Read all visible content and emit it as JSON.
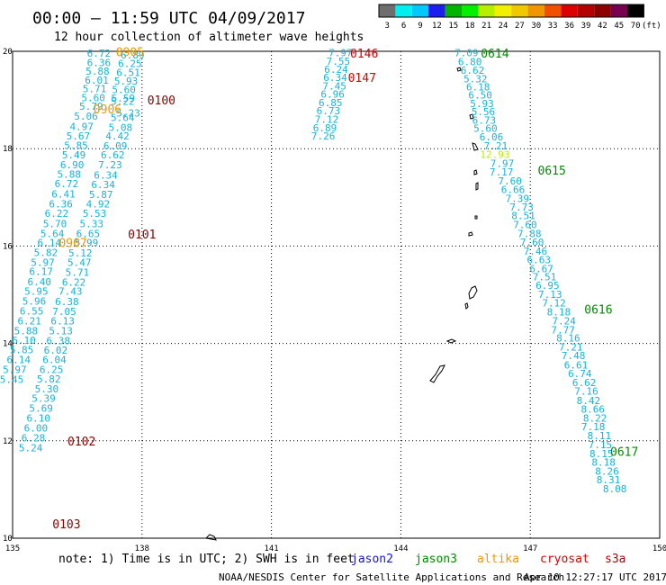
{
  "header": {
    "title": "00:00 – 11:59 UTC 04/09/2017",
    "subtitle": "12 hour collection of altimeter wave heights"
  },
  "scale": {
    "unit_label": "(ft)",
    "ticks": [
      "3",
      "6",
      "9",
      "12",
      "15",
      "18",
      "21",
      "24",
      "27",
      "30",
      "33",
      "36",
      "39",
      "42",
      "45",
      "70"
    ],
    "colors": [
      "#6e6e6e",
      "#00f0f0",
      "#00c8f8",
      "#1e1ef0",
      "#00b400",
      "#00f000",
      "#b4f000",
      "#f0f000",
      "#f0c800",
      "#f09600",
      "#f05000",
      "#dc0000",
      "#b40000",
      "#8c0000",
      "#780050",
      "#000000"
    ]
  },
  "footer": {
    "note": "note: 1) Time is in UTC; 2) SWH is in feet",
    "credit": "NOAA/NESDIS Center for Satellite Applications and Research",
    "timestamp": "Apr 10 12:27:17 UTC 2017",
    "satellites": [
      {
        "name": "jason2",
        "color": "#1414dc"
      },
      {
        "name": "jason3",
        "color": "#008c00"
      },
      {
        "name": "altika",
        "color": "#f09600"
      },
      {
        "name": "cryosat",
        "color": "#dc0000"
      },
      {
        "name": "s3a",
        "color": "#b40000"
      }
    ]
  },
  "chart_data": {
    "type": "scatter",
    "xlim": [
      135,
      150
    ],
    "ylim": [
      10,
      20
    ],
    "x_ticks": [
      135,
      138,
      141,
      144,
      147,
      150
    ],
    "y_ticks": [
      10,
      12,
      14,
      16,
      18,
      20
    ],
    "grid": true,
    "value_color": "#14b4dc",
    "tracks": [
      {
        "id": "A",
        "points": [
          [
            137.0,
            19.96,
            "6.72"
          ],
          [
            137.0,
            19.77,
            "6.36"
          ],
          [
            136.97,
            19.59,
            "5.88"
          ],
          [
            136.95,
            19.41,
            "6.01"
          ],
          [
            136.9,
            19.23,
            "5.71"
          ],
          [
            136.87,
            19.05,
            "5.60"
          ],
          [
            136.82,
            18.87,
            "5.79"
          ],
          [
            136.7,
            18.67,
            "5.06"
          ],
          [
            136.6,
            18.46,
            "4.97"
          ],
          [
            136.52,
            18.26,
            "5.67"
          ],
          [
            136.47,
            18.07,
            "5.85"
          ],
          [
            136.42,
            17.87,
            "5.49"
          ],
          [
            136.38,
            17.67,
            "6.90"
          ],
          [
            136.31,
            17.48,
            "5.88"
          ],
          [
            136.25,
            17.28,
            "6.72"
          ],
          [
            136.18,
            17.07,
            "6.41"
          ],
          [
            136.12,
            16.87,
            "6.36"
          ],
          [
            136.02,
            16.67,
            "6.22"
          ],
          [
            135.98,
            16.46,
            "5.70"
          ],
          [
            135.92,
            16.26,
            "5.64"
          ],
          [
            135.85,
            16.07,
            "6.14"
          ],
          [
            135.77,
            15.87,
            "5.82"
          ],
          [
            135.7,
            15.67,
            "5.97"
          ],
          [
            135.66,
            15.48,
            "6.17"
          ],
          [
            135.62,
            15.27,
            "6.40"
          ],
          [
            135.55,
            15.07,
            "5.95"
          ],
          [
            135.5,
            14.87,
            "5.96"
          ],
          [
            135.44,
            14.67,
            "6.55"
          ],
          [
            135.39,
            14.46,
            "6.21"
          ],
          [
            135.31,
            14.26,
            "5.88"
          ],
          [
            135.26,
            14.07,
            "6.10"
          ],
          [
            135.21,
            13.87,
            "5.85"
          ],
          [
            135.14,
            13.67,
            "6.14"
          ],
          [
            135.05,
            13.47,
            "5.97"
          ],
          [
            134.98,
            13.26,
            "5.45"
          ]
        ]
      },
      {
        "id": "B",
        "points": [
          [
            137.78,
            19.93,
            "6.89"
          ],
          [
            137.72,
            19.75,
            "6.25"
          ],
          [
            137.68,
            19.57,
            "6.51"
          ],
          [
            137.63,
            19.39,
            "5.93"
          ],
          [
            137.58,
            19.21,
            "5.60"
          ],
          [
            137.56,
            19.04,
            "5.59"
          ],
          [
            137.55,
            18.97,
            "5.22"
          ],
          [
            137.68,
            18.73,
            "5.23"
          ],
          [
            137.55,
            18.64,
            "5.64"
          ],
          [
            137.5,
            18.44,
            "5.08"
          ],
          [
            137.43,
            18.26,
            "4.42"
          ],
          [
            137.38,
            18.06,
            "6.09"
          ],
          [
            137.32,
            17.87,
            "6.62"
          ],
          [
            137.26,
            17.67,
            "7.23"
          ],
          [
            137.16,
            17.46,
            "6.34"
          ],
          [
            137.1,
            17.26,
            "6.34"
          ],
          [
            137.05,
            17.06,
            "5.87"
          ],
          [
            136.98,
            16.87,
            "4.92"
          ],
          [
            136.9,
            16.67,
            "5.53"
          ],
          [
            136.83,
            16.46,
            "5.33"
          ],
          [
            136.75,
            16.26,
            "6.65"
          ],
          [
            136.71,
            16.07,
            "5.99"
          ],
          [
            136.57,
            15.86,
            "5.12"
          ],
          [
            136.55,
            15.67,
            "5.47"
          ],
          [
            136.5,
            15.46,
            "5.71"
          ],
          [
            136.42,
            15.26,
            "6.22"
          ],
          [
            136.34,
            15.07,
            "7.43"
          ],
          [
            136.26,
            14.86,
            "6.38"
          ],
          [
            136.2,
            14.66,
            "7.05"
          ],
          [
            136.16,
            14.46,
            "6.13"
          ],
          [
            136.12,
            14.26,
            "5.13"
          ],
          [
            136.06,
            14.06,
            "6.38"
          ],
          [
            136.0,
            13.86,
            "6.02"
          ],
          [
            135.97,
            13.67,
            "6.04"
          ],
          [
            135.9,
            13.47,
            "6.25"
          ],
          [
            135.84,
            13.27,
            "5.82"
          ],
          [
            135.79,
            13.07,
            "5.30"
          ],
          [
            135.72,
            12.87,
            "5.39"
          ],
          [
            135.66,
            12.67,
            "5.69"
          ],
          [
            135.6,
            12.47,
            "6.10"
          ],
          [
            135.54,
            12.26,
            "6.00"
          ],
          [
            135.48,
            12.06,
            "6.28"
          ],
          [
            135.42,
            11.86,
            "5.24"
          ]
        ]
      },
      {
        "id": "C",
        "points": [
          [
            142.6,
            19.97,
            "7.97"
          ],
          [
            142.55,
            19.8,
            "7.55"
          ],
          [
            142.5,
            19.63,
            "6.24"
          ],
          [
            142.48,
            19.46,
            "6.34"
          ],
          [
            142.46,
            19.29,
            "7.45"
          ],
          [
            142.42,
            19.12,
            "6.96"
          ],
          [
            142.37,
            18.95,
            "6.85"
          ],
          [
            142.32,
            18.78,
            "6.73"
          ],
          [
            142.28,
            18.6,
            "7.12"
          ],
          [
            142.24,
            18.43,
            "6.89"
          ],
          [
            142.2,
            18.26,
            "7.26"
          ]
        ]
      },
      {
        "id": "D",
        "points": [
          [
            145.52,
            19.97,
            "7.09"
          ],
          [
            145.6,
            19.79,
            "6.80"
          ],
          [
            145.66,
            19.61,
            "6.62"
          ],
          [
            145.73,
            19.44,
            "5.32"
          ],
          [
            145.79,
            19.27,
            "6.18"
          ],
          [
            145.84,
            19.1,
            "6.50"
          ],
          [
            145.88,
            18.93,
            "5.93"
          ],
          [
            145.91,
            18.76,
            "5.56"
          ],
          [
            145.93,
            18.59,
            "6.73"
          ],
          [
            145.96,
            18.42,
            "5.60"
          ],
          [
            146.1,
            18.24,
            "6.06"
          ],
          [
            146.2,
            18.06,
            "7.21"
          ],
          [
            146.18,
            17.88,
            "12.93"
          ],
          [
            146.35,
            17.7,
            "7.97"
          ],
          [
            146.33,
            17.52,
            "7.17"
          ],
          [
            146.53,
            17.34,
            "7.60"
          ],
          [
            146.6,
            17.16,
            "6.66"
          ],
          [
            146.7,
            16.98,
            "7.39"
          ],
          [
            146.8,
            16.8,
            "7.73"
          ],
          [
            146.84,
            16.63,
            "8.51"
          ],
          [
            146.88,
            16.44,
            "7.60"
          ],
          [
            146.98,
            16.26,
            "7.88"
          ],
          [
            147.04,
            16.08,
            "7.60"
          ],
          [
            147.12,
            15.9,
            "7.46"
          ],
          [
            147.2,
            15.72,
            "6.63"
          ],
          [
            147.26,
            15.54,
            "6.67"
          ],
          [
            147.33,
            15.37,
            "7.51"
          ],
          [
            147.4,
            15.19,
            "6.95"
          ],
          [
            147.46,
            15.01,
            "7.13"
          ],
          [
            147.55,
            14.83,
            "7.12"
          ],
          [
            147.66,
            14.65,
            "8.18"
          ],
          [
            147.78,
            14.46,
            "7.24"
          ],
          [
            147.76,
            14.28,
            "7.77"
          ],
          [
            147.88,
            14.11,
            "8.16"
          ],
          [
            147.94,
            13.93,
            "7.21"
          ],
          [
            148.0,
            13.75,
            "7.48"
          ],
          [
            148.06,
            13.56,
            "6.61"
          ],
          [
            148.15,
            13.38,
            "6.74"
          ],
          [
            148.25,
            13.2,
            "6.62"
          ],
          [
            148.3,
            13.02,
            "7.16"
          ],
          [
            148.35,
            12.83,
            "8.42"
          ],
          [
            148.45,
            12.65,
            "8.66"
          ],
          [
            148.5,
            12.47,
            "8.22"
          ],
          [
            148.46,
            12.29,
            "7.18"
          ],
          [
            148.6,
            12.11,
            "8.11"
          ],
          [
            148.62,
            11.92,
            "7.15"
          ],
          [
            148.65,
            11.74,
            "8.15"
          ],
          [
            148.7,
            11.56,
            "8.18"
          ],
          [
            148.78,
            11.38,
            "8.26"
          ],
          [
            148.81,
            11.2,
            "8.31"
          ],
          [
            148.96,
            11.02,
            "8.08"
          ]
        ]
      }
    ],
    "pass_labels": [
      {
        "text": "0905",
        "x": 137.72,
        "y": 19.99,
        "color": "#f09600"
      },
      {
        "text": "0100",
        "x": 138.45,
        "y": 19.0,
        "color": "#8c0000"
      },
      {
        "text": "0906",
        "x": 137.2,
        "y": 18.82,
        "color": "#f09600"
      },
      {
        "text": "0101",
        "x": 138.0,
        "y": 16.25,
        "color": "#8c0000"
      },
      {
        "text": "0907",
        "x": 136.4,
        "y": 16.07,
        "color": "#f09600"
      },
      {
        "text": "0102",
        "x": 136.6,
        "y": 12.0,
        "color": "#8c0000"
      },
      {
        "text": "0103",
        "x": 136.25,
        "y": 10.3,
        "color": "#8c0000"
      },
      {
        "text": "0146",
        "x": 143.15,
        "y": 19.96,
        "color": "#dc0000"
      },
      {
        "text": "0147",
        "x": 143.1,
        "y": 19.46,
        "color": "#dc0000"
      },
      {
        "text": "0614",
        "x": 146.18,
        "y": 19.96,
        "color": "#008c00"
      },
      {
        "text": "0615",
        "x": 147.5,
        "y": 17.56,
        "color": "#008c00"
      },
      {
        "text": "0616",
        "x": 148.58,
        "y": 14.7,
        "color": "#008c00"
      },
      {
        "text": "0617",
        "x": 149.18,
        "y": 11.78,
        "color": "#008c00"
      }
    ]
  }
}
